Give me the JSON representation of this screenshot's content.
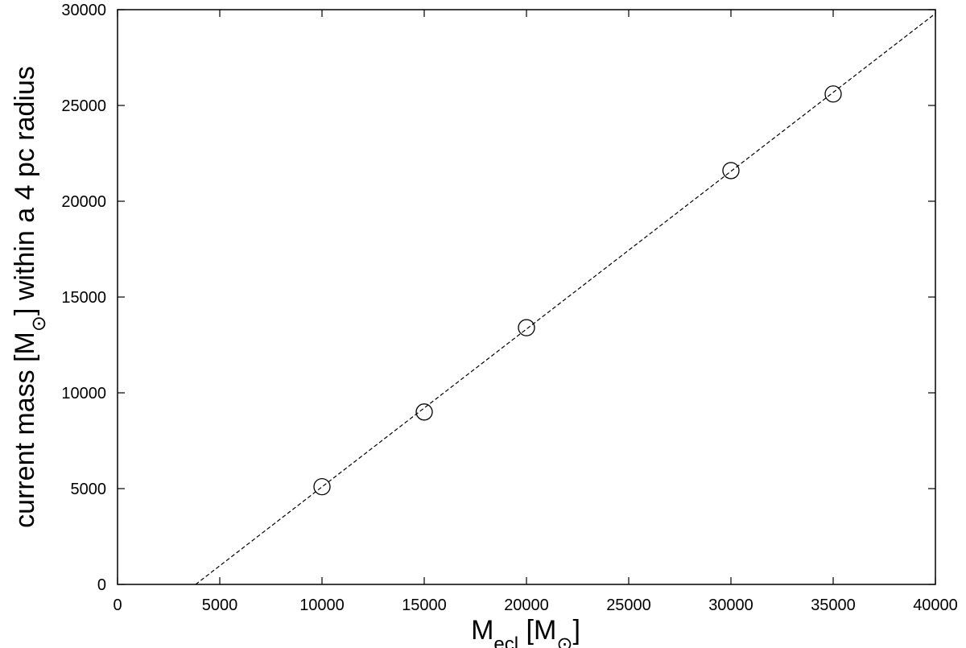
{
  "chart_data": {
    "type": "scatter",
    "xlim": [
      0,
      40000
    ],
    "ylim": [
      0,
      30000
    ],
    "xticks": [
      0,
      5000,
      10000,
      15000,
      20000,
      25000,
      30000,
      35000,
      40000
    ],
    "yticks": [
      0,
      5000,
      10000,
      15000,
      20000,
      25000,
      30000
    ],
    "xlabel": [
      {
        "text": "M"
      },
      {
        "text": "ecl",
        "sub": true
      },
      {
        "text": " [M"
      },
      {
        "text": "⊙",
        "sub": true
      },
      {
        "text": "]"
      }
    ],
    "ylabel": [
      {
        "text": "current mass [M"
      },
      {
        "text": "⊙",
        "sub": true
      },
      {
        "text": "] within a 4 pc radius"
      }
    ],
    "series": [
      {
        "type": "scatter",
        "marker": "circle",
        "color": "#000000",
        "x": [
          10000,
          15000,
          20000,
          30000,
          35000
        ],
        "values": [
          5100,
          9000,
          13400,
          21600,
          25600
        ]
      },
      {
        "type": "line",
        "dash": "dashed",
        "color": "#000000",
        "x": [
          3820,
          40000
        ],
        "values": [
          0,
          29800
        ]
      }
    ]
  }
}
